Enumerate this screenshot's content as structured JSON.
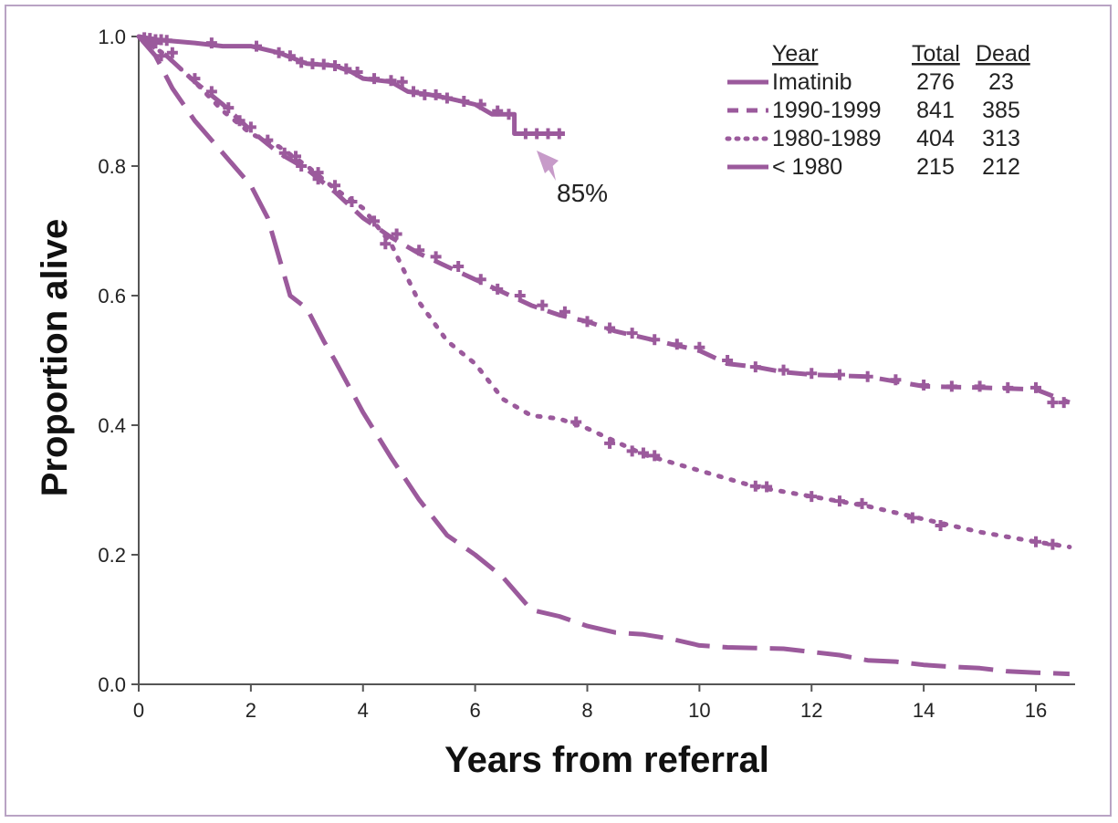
{
  "colors": {
    "series": "#9b5a9c",
    "annotation_arrow": "#c79bc9",
    "frame": "#b9a3c4"
  },
  "chart_data": {
    "type": "line",
    "subtype": "kaplan-meier survival curves",
    "xlabel": "Years from referral",
    "ylabel": "Proportion alive",
    "xlim": [
      0,
      16.7
    ],
    "ylim": [
      0,
      1.0
    ],
    "xticks": [
      "0",
      "2",
      "4",
      "6",
      "8",
      "10",
      "12",
      "14",
      "16"
    ],
    "yticks": [
      "0.0",
      "0.2",
      "0.4",
      "0.6",
      "0.8",
      "1.0"
    ],
    "grid": false,
    "legend": {
      "placement": "top-right",
      "headers": {
        "year": "Year",
        "total": "Total",
        "dead": "Dead"
      },
      "entries": [
        {
          "name": "Imatinib",
          "total": "276",
          "dead": "23",
          "style": "solid"
        },
        {
          "name": "1990-1999",
          "total": "841",
          "dead": "385",
          "style": "dashed"
        },
        {
          "name": "1980-1989",
          "total": "404",
          "dead": "313",
          "style": "dotted"
        },
        {
          "name": "< 1980",
          "total": "215",
          "dead": "212",
          "style": "longdash"
        }
      ]
    },
    "annotation": {
      "text": "85%",
      "x": 7.2,
      "y": 0.85
    },
    "series": [
      {
        "name": "Imatinib",
        "style": "solid",
        "x": [
          0,
          0.3,
          0.6,
          1.0,
          1.5,
          2.0,
          2.5,
          2.8,
          3.0,
          3.5,
          3.8,
          4.0,
          4.5,
          4.8,
          5.2,
          5.5,
          6.0,
          6.3,
          6.7,
          6.7,
          7.6
        ],
        "y": [
          1.0,
          0.995,
          0.993,
          0.99,
          0.985,
          0.985,
          0.975,
          0.965,
          0.958,
          0.955,
          0.945,
          0.935,
          0.93,
          0.915,
          0.91,
          0.905,
          0.895,
          0.88,
          0.88,
          0.85,
          0.85
        ],
        "censor_x": [
          0.1,
          0.2,
          0.3,
          0.4,
          0.5,
          1.3,
          2.1,
          2.5,
          2.7,
          2.9,
          3.1,
          3.3,
          3.5,
          3.7,
          3.9,
          4.2,
          4.5,
          4.7,
          4.9,
          5.1,
          5.3,
          5.5,
          5.8,
          6.1,
          6.4,
          6.6,
          6.9,
          7.1,
          7.3,
          7.5
        ],
        "censor_y": [
          0.998,
          0.997,
          0.995,
          0.995,
          0.994,
          0.99,
          0.985,
          0.975,
          0.97,
          0.96,
          0.958,
          0.957,
          0.955,
          0.95,
          0.945,
          0.935,
          0.932,
          0.93,
          0.915,
          0.91,
          0.91,
          0.905,
          0.9,
          0.895,
          0.885,
          0.88,
          0.85,
          0.85,
          0.85,
          0.85
        ]
      },
      {
        "name": "1990-1999",
        "style": "dashed",
        "x": [
          0,
          0.5,
          1.0,
          1.5,
          2.0,
          2.5,
          3.0,
          3.5,
          4.0,
          4.5,
          5.0,
          5.5,
          6.0,
          6.5,
          7.0,
          7.5,
          8.0,
          8.5,
          9.0,
          9.5,
          10.0,
          10.5,
          11.0,
          11.5,
          12.0,
          13.0,
          14.0,
          15.0,
          16.0,
          16.6
        ],
        "y": [
          1.0,
          0.97,
          0.93,
          0.895,
          0.855,
          0.82,
          0.795,
          0.76,
          0.72,
          0.69,
          0.665,
          0.645,
          0.625,
          0.605,
          0.585,
          0.57,
          0.56,
          0.545,
          0.535,
          0.525,
          0.515,
          0.495,
          0.49,
          0.482,
          0.478,
          0.475,
          0.46,
          0.458,
          0.455,
          0.435
        ],
        "censor_x": [
          0.3,
          0.6,
          1.0,
          1.3,
          1.6,
          2.0,
          2.3,
          2.6,
          2.9,
          3.2,
          3.5,
          3.8,
          4.2,
          4.6,
          5.0,
          5.3,
          5.7,
          6.1,
          6.4,
          6.8,
          7.2,
          7.6,
          8.0,
          8.4,
          8.8,
          9.2,
          9.6,
          10.0,
          10.5,
          11.0,
          11.5,
          12.0,
          12.5,
          13.0,
          13.5,
          14.0,
          14.5,
          15.0,
          15.5,
          16.0,
          16.3,
          16.5
        ],
        "censor_y": [
          0.99,
          0.975,
          0.935,
          0.915,
          0.89,
          0.86,
          0.84,
          0.82,
          0.8,
          0.78,
          0.77,
          0.745,
          0.715,
          0.695,
          0.67,
          0.66,
          0.645,
          0.625,
          0.61,
          0.6,
          0.585,
          0.575,
          0.56,
          0.55,
          0.542,
          0.532,
          0.525,
          0.52,
          0.5,
          0.49,
          0.485,
          0.48,
          0.478,
          0.475,
          0.47,
          0.462,
          0.46,
          0.46,
          0.458,
          0.458,
          0.435,
          0.435
        ]
      },
      {
        "name": "1980-1989",
        "style": "dotted",
        "x": [
          0,
          0.5,
          1.0,
          1.5,
          2.0,
          2.5,
          3.0,
          3.5,
          4.0,
          4.5,
          5.0,
          5.5,
          6.0,
          6.5,
          7.0,
          7.5,
          8.0,
          8.5,
          9.0,
          10.0,
          11.0,
          12.0,
          13.0,
          14.0,
          15.0,
          16.0,
          16.6
        ],
        "y": [
          1.0,
          0.97,
          0.93,
          0.885,
          0.85,
          0.83,
          0.8,
          0.765,
          0.735,
          0.68,
          0.59,
          0.53,
          0.495,
          0.44,
          0.415,
          0.41,
          0.395,
          0.375,
          0.355,
          0.33,
          0.305,
          0.29,
          0.275,
          0.255,
          0.235,
          0.22,
          0.212
        ],
        "censor_x": [
          0.4,
          1.8,
          2.8,
          3.2,
          4.4,
          7.8,
          8.4,
          8.8,
          9.0,
          9.2,
          11.0,
          11.2,
          12.0,
          12.5,
          12.9,
          13.8,
          14.3,
          16.0,
          16.3
        ],
        "censor_y": [
          0.97,
          0.87,
          0.815,
          0.79,
          0.68,
          0.405,
          0.372,
          0.36,
          0.357,
          0.353,
          0.306,
          0.305,
          0.29,
          0.283,
          0.279,
          0.257,
          0.245,
          0.22,
          0.216
        ]
      },
      {
        "name": "< 1980",
        "style": "longdash",
        "x": [
          0,
          0.3,
          0.6,
          1.0,
          1.5,
          2.0,
          2.3,
          2.5,
          2.7,
          3.0,
          3.3,
          3.5,
          4.0,
          4.5,
          5.0,
          5.5,
          6.0,
          6.5,
          7.0,
          7.5,
          8.0,
          8.5,
          9.0,
          9.5,
          10.0,
          10.5,
          11.0,
          11.5,
          12.0,
          12.5,
          13.0,
          13.5,
          14.0,
          14.5,
          15.0,
          15.5,
          16.0,
          16.6
        ],
        "y": [
          1.0,
          0.97,
          0.92,
          0.87,
          0.82,
          0.77,
          0.72,
          0.66,
          0.6,
          0.58,
          0.53,
          0.5,
          0.42,
          0.35,
          0.285,
          0.23,
          0.2,
          0.165,
          0.115,
          0.105,
          0.09,
          0.08,
          0.077,
          0.07,
          0.06,
          0.057,
          0.056,
          0.055,
          0.05,
          0.045,
          0.037,
          0.035,
          0.03,
          0.027,
          0.025,
          0.02,
          0.018,
          0.016
        ]
      }
    ]
  }
}
